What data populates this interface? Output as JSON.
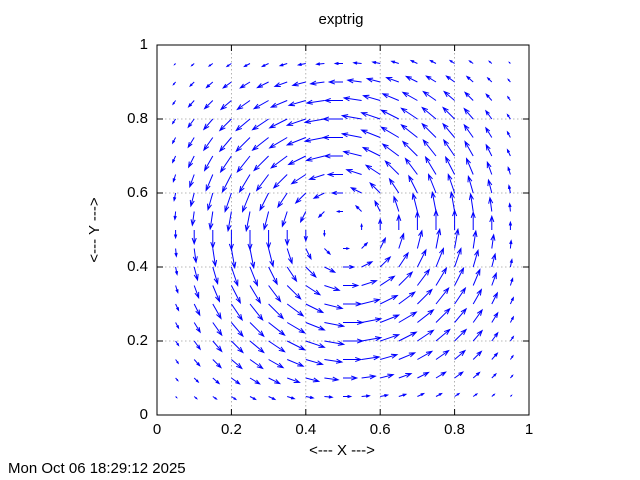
{
  "chart_data": {
    "type": "quiver",
    "title": "exptrig",
    "xlabel": "<--- X --->",
    "ylabel": "<--- Y --->",
    "timestamp": "Mon Oct 06 18:29:12 2025",
    "color": "#0000ff",
    "grid": true,
    "xlim": [
      0,
      1
    ],
    "ylim": [
      0,
      1
    ],
    "xticks": [
      0,
      0.2,
      0.4,
      0.6,
      0.8,
      1
    ],
    "yticks": [
      0,
      0.2,
      0.4,
      0.6,
      0.8,
      1
    ],
    "x": [
      0.05,
      0.1,
      0.15,
      0.2,
      0.25,
      0.3,
      0.35,
      0.4,
      0.45,
      0.5,
      0.55,
      0.6,
      0.65,
      0.7,
      0.75,
      0.8,
      0.85,
      0.9,
      0.95
    ],
    "y": [
      0.05,
      0.1,
      0.15,
      0.2,
      0.25,
      0.3,
      0.35,
      0.4,
      0.45,
      0.5,
      0.55,
      0.6,
      0.65,
      0.7,
      0.75,
      0.8,
      0.85,
      0.9,
      0.95
    ],
    "u": [
      [
        0.003,
        0.007,
        0.01,
        0.012,
        0.015,
        0.017,
        0.019,
        0.02,
        0.021,
        0.021,
        0.021,
        0.02,
        0.019,
        0.017,
        0.015,
        0.012,
        0.01,
        0.007,
        0.003
      ],
      [
        0.006,
        0.011,
        0.017,
        0.022,
        0.026,
        0.03,
        0.033,
        0.035,
        0.037,
        0.037,
        0.037,
        0.035,
        0.033,
        0.03,
        0.026,
        0.022,
        0.017,
        0.011,
        0.006
      ],
      [
        0.007,
        0.015,
        0.022,
        0.028,
        0.034,
        0.039,
        0.043,
        0.045,
        0.047,
        0.048,
        0.047,
        0.045,
        0.043,
        0.039,
        0.034,
        0.028,
        0.022,
        0.015,
        0.007
      ],
      [
        0.008,
        0.016,
        0.024,
        0.031,
        0.037,
        0.043,
        0.047,
        0.05,
        0.052,
        0.053,
        0.052,
        0.05,
        0.047,
        0.043,
        0.037,
        0.031,
        0.024,
        0.016,
        0.008
      ],
      [
        0.008,
        0.016,
        0.024,
        0.031,
        0.037,
        0.043,
        0.047,
        0.05,
        0.052,
        0.053,
        0.052,
        0.05,
        0.047,
        0.043,
        0.037,
        0.031,
        0.024,
        0.016,
        0.008
      ],
      [
        0.008,
        0.015,
        0.022,
        0.029,
        0.034,
        0.039,
        0.043,
        0.046,
        0.048,
        0.049,
        0.048,
        0.046,
        0.043,
        0.039,
        0.034,
        0.029,
        0.022,
        0.015,
        0.008
      ],
      [
        0.006,
        0.012,
        0.018,
        0.024,
        0.028,
        0.032,
        0.036,
        0.038,
        0.04,
        0.04,
        0.04,
        0.038,
        0.036,
        0.032,
        0.028,
        0.024,
        0.018,
        0.012,
        0.006
      ],
      [
        0.004,
        0.009,
        0.013,
        0.017,
        0.02,
        0.023,
        0.025,
        0.027,
        0.028,
        0.029,
        0.028,
        0.027,
        0.025,
        0.023,
        0.02,
        0.017,
        0.013,
        0.009,
        0.004
      ],
      [
        0.002,
        0.005,
        0.007,
        0.009,
        0.01,
        0.012,
        0.013,
        0.014,
        0.015,
        0.015,
        0.015,
        0.014,
        0.013,
        0.012,
        0.01,
        0.009,
        0.007,
        0.005,
        0.002
      ],
      [
        0,
        0,
        0,
        0,
        0,
        0,
        0,
        0,
        0,
        0,
        0,
        0,
        0,
        0,
        0,
        0,
        0,
        0,
        0
      ],
      [
        -0.002,
        -0.005,
        -0.007,
        -0.009,
        -0.01,
        -0.012,
        -0.013,
        -0.014,
        -0.015,
        -0.015,
        -0.015,
        -0.014,
        -0.013,
        -0.012,
        -0.01,
        -0.009,
        -0.007,
        -0.005,
        -0.002
      ],
      [
        -0.004,
        -0.009,
        -0.013,
        -0.017,
        -0.02,
        -0.023,
        -0.025,
        -0.027,
        -0.028,
        -0.029,
        -0.028,
        -0.027,
        -0.025,
        -0.023,
        -0.02,
        -0.017,
        -0.013,
        -0.009,
        -0.004
      ],
      [
        -0.006,
        -0.012,
        -0.018,
        -0.024,
        -0.028,
        -0.032,
        -0.036,
        -0.038,
        -0.04,
        -0.04,
        -0.04,
        -0.038,
        -0.036,
        -0.032,
        -0.028,
        -0.024,
        -0.018,
        -0.012,
        -0.006
      ],
      [
        -0.008,
        -0.015,
        -0.022,
        -0.029,
        -0.034,
        -0.039,
        -0.043,
        -0.046,
        -0.048,
        -0.049,
        -0.048,
        -0.046,
        -0.043,
        -0.039,
        -0.034,
        -0.029,
        -0.022,
        -0.015,
        -0.008
      ],
      [
        -0.008,
        -0.016,
        -0.024,
        -0.031,
        -0.037,
        -0.043,
        -0.047,
        -0.05,
        -0.052,
        -0.053,
        -0.052,
        -0.05,
        -0.047,
        -0.043,
        -0.037,
        -0.031,
        -0.024,
        -0.016,
        -0.008
      ],
      [
        -0.008,
        -0.016,
        -0.024,
        -0.031,
        -0.037,
        -0.043,
        -0.047,
        -0.05,
        -0.052,
        -0.053,
        -0.052,
        -0.05,
        -0.047,
        -0.043,
        -0.037,
        -0.031,
        -0.024,
        -0.016,
        -0.008
      ],
      [
        -0.007,
        -0.015,
        -0.022,
        -0.028,
        -0.034,
        -0.039,
        -0.043,
        -0.045,
        -0.047,
        -0.048,
        -0.047,
        -0.045,
        -0.043,
        -0.039,
        -0.034,
        -0.028,
        -0.022,
        -0.015,
        -0.007
      ],
      [
        -0.006,
        -0.011,
        -0.017,
        -0.022,
        -0.026,
        -0.03,
        -0.033,
        -0.035,
        -0.037,
        -0.037,
        -0.037,
        -0.035,
        -0.033,
        -0.03,
        -0.026,
        -0.022,
        -0.017,
        -0.011,
        -0.006
      ],
      [
        -0.003,
        -0.007,
        -0.01,
        -0.012,
        -0.015,
        -0.017,
        -0.019,
        -0.02,
        -0.021,
        -0.021,
        -0.021,
        -0.02,
        -0.019,
        -0.017,
        -0.015,
        -0.012,
        -0.01,
        -0.007,
        -0.003
      ]
    ],
    "v": [
      [
        -0.003,
        -0.006,
        -0.007,
        -0.008,
        -0.008,
        -0.008,
        -0.006,
        -0.004,
        -0.002,
        0,
        0.002,
        0.004,
        0.006,
        0.008,
        0.008,
        0.008,
        0.007,
        0.006,
        0.003
      ],
      [
        -0.007,
        -0.011,
        -0.015,
        -0.016,
        -0.016,
        -0.015,
        -0.012,
        -0.009,
        -0.005,
        0,
        0.005,
        0.009,
        0.012,
        0.015,
        0.016,
        0.016,
        0.015,
        0.011,
        0.007
      ],
      [
        -0.01,
        -0.017,
        -0.022,
        -0.024,
        -0.024,
        -0.022,
        -0.018,
        -0.013,
        -0.007,
        0,
        0.007,
        0.013,
        0.018,
        0.022,
        0.024,
        0.024,
        0.022,
        0.017,
        0.01
      ],
      [
        -0.012,
        -0.022,
        -0.028,
        -0.031,
        -0.031,
        -0.029,
        -0.024,
        -0.017,
        -0.009,
        0,
        0.009,
        0.017,
        0.024,
        0.029,
        0.031,
        0.031,
        0.028,
        0.022,
        0.012
      ],
      [
        -0.015,
        -0.026,
        -0.034,
        -0.037,
        -0.037,
        -0.034,
        -0.028,
        -0.02,
        -0.01,
        0,
        0.01,
        0.02,
        0.028,
        0.034,
        0.037,
        0.037,
        0.034,
        0.026,
        0.015
      ],
      [
        -0.017,
        -0.03,
        -0.039,
        -0.043,
        -0.043,
        -0.039,
        -0.032,
        -0.023,
        -0.012,
        0,
        0.012,
        0.023,
        0.032,
        0.039,
        0.043,
        0.043,
        0.039,
        0.03,
        0.017
      ],
      [
        -0.019,
        -0.033,
        -0.043,
        -0.047,
        -0.047,
        -0.043,
        -0.036,
        -0.025,
        -0.013,
        0,
        0.013,
        0.025,
        0.036,
        0.043,
        0.047,
        0.047,
        0.043,
        0.033,
        0.019
      ],
      [
        -0.02,
        -0.035,
        -0.045,
        -0.05,
        -0.05,
        -0.046,
        -0.038,
        -0.027,
        -0.014,
        0,
        0.014,
        0.027,
        0.038,
        0.046,
        0.05,
        0.05,
        0.045,
        0.035,
        0.02
      ],
      [
        -0.021,
        -0.037,
        -0.047,
        -0.052,
        -0.052,
        -0.048,
        -0.04,
        -0.028,
        -0.015,
        0,
        0.015,
        0.028,
        0.04,
        0.048,
        0.052,
        0.052,
        0.047,
        0.037,
        0.021
      ],
      [
        -0.021,
        -0.037,
        -0.048,
        -0.053,
        -0.053,
        -0.049,
        -0.04,
        -0.029,
        -0.015,
        0,
        0.015,
        0.029,
        0.04,
        0.049,
        0.053,
        0.053,
        0.048,
        0.037,
        0.021
      ],
      [
        -0.021,
        -0.037,
        -0.047,
        -0.052,
        -0.052,
        -0.048,
        -0.04,
        -0.028,
        -0.015,
        0,
        0.015,
        0.028,
        0.04,
        0.048,
        0.052,
        0.052,
        0.047,
        0.037,
        0.021
      ],
      [
        -0.02,
        -0.035,
        -0.045,
        -0.05,
        -0.05,
        -0.046,
        -0.038,
        -0.027,
        -0.014,
        0,
        0.014,
        0.027,
        0.038,
        0.046,
        0.05,
        0.05,
        0.045,
        0.035,
        0.02
      ],
      [
        -0.019,
        -0.033,
        -0.043,
        -0.047,
        -0.047,
        -0.043,
        -0.036,
        -0.025,
        -0.013,
        0,
        0.013,
        0.025,
        0.036,
        0.043,
        0.047,
        0.047,
        0.043,
        0.033,
        0.019
      ],
      [
        -0.017,
        -0.03,
        -0.039,
        -0.043,
        -0.043,
        -0.039,
        -0.032,
        -0.023,
        -0.012,
        0,
        0.012,
        0.023,
        0.032,
        0.039,
        0.043,
        0.043,
        0.039,
        0.03,
        0.017
      ],
      [
        -0.015,
        -0.026,
        -0.034,
        -0.037,
        -0.037,
        -0.034,
        -0.028,
        -0.02,
        -0.01,
        0,
        0.01,
        0.02,
        0.028,
        0.034,
        0.037,
        0.037,
        0.034,
        0.026,
        0.015
      ],
      [
        -0.012,
        -0.022,
        -0.028,
        -0.031,
        -0.031,
        -0.029,
        -0.024,
        -0.017,
        -0.009,
        0,
        0.009,
        0.017,
        0.024,
        0.029,
        0.031,
        0.031,
        0.028,
        0.022,
        0.012
      ],
      [
        -0.01,
        -0.017,
        -0.022,
        -0.024,
        -0.024,
        -0.022,
        -0.018,
        -0.013,
        -0.007,
        0,
        0.007,
        0.013,
        0.018,
        0.022,
        0.024,
        0.024,
        0.022,
        0.017,
        0.01
      ],
      [
        -0.007,
        -0.011,
        -0.015,
        -0.016,
        -0.016,
        -0.015,
        -0.012,
        -0.009,
        -0.005,
        0,
        0.005,
        0.009,
        0.012,
        0.015,
        0.016,
        0.016,
        0.015,
        0.011,
        0.007
      ],
      [
        -0.003,
        -0.006,
        -0.007,
        -0.008,
        -0.008,
        -0.008,
        -0.006,
        -0.004,
        -0.002,
        0,
        0.002,
        0.004,
        0.006,
        0.008,
        0.008,
        0.008,
        0.007,
        0.006,
        0.003
      ]
    ]
  }
}
